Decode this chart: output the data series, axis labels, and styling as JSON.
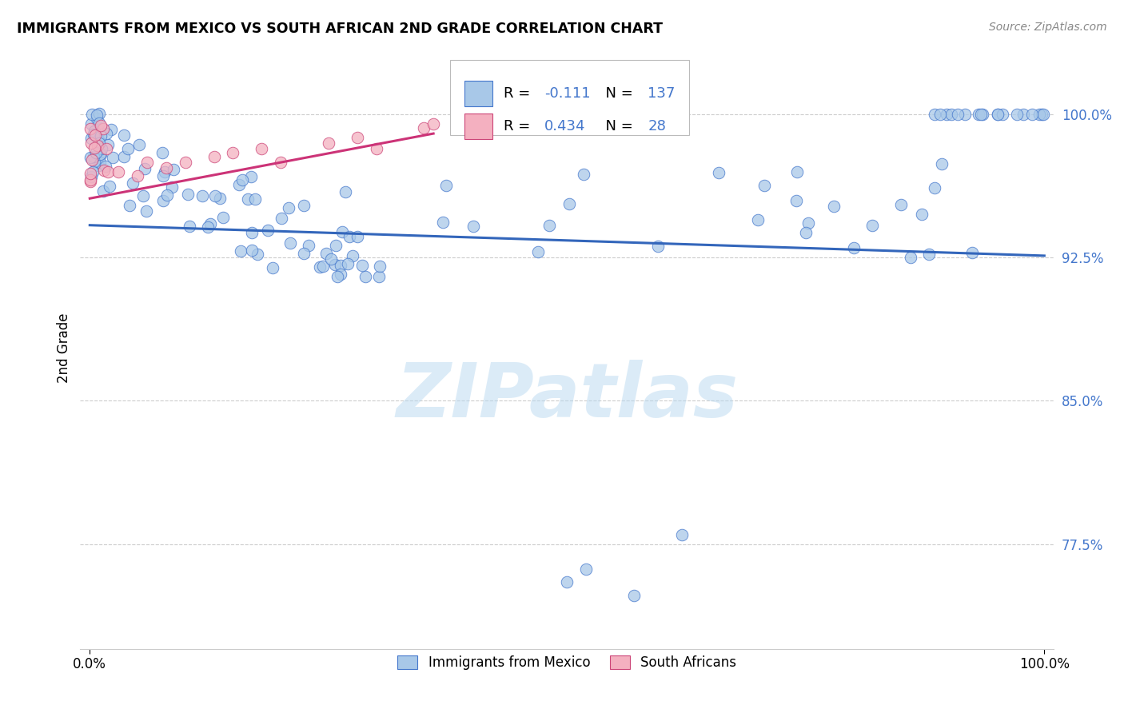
{
  "title": "IMMIGRANTS FROM MEXICO VS SOUTH AFRICAN 2ND GRADE CORRELATION CHART",
  "source": "Source: ZipAtlas.com",
  "ylabel": "2nd Grade",
  "legend_label1": "Immigrants from Mexico",
  "legend_label2": "South Africans",
  "legend_r1": "-0.111",
  "legend_n1": "137",
  "legend_r2": "0.434",
  "legend_n2": "28",
  "blue_fill": "#a8c8e8",
  "blue_edge": "#4477cc",
  "pink_fill": "#f4b0c0",
  "pink_edge": "#cc4477",
  "blue_line_color": "#3366bb",
  "pink_line_color": "#cc3377",
  "ytick_labels": [
    "77.5%",
    "85.0%",
    "92.5%",
    "100.0%"
  ],
  "ytick_values": [
    0.775,
    0.85,
    0.925,
    1.0
  ],
  "xlim": [
    -0.01,
    1.01
  ],
  "ylim": [
    0.72,
    1.035
  ],
  "watermark_text": "ZIPatlas",
  "blue_trend_start_y": 0.942,
  "blue_trend_end_y": 0.926,
  "pink_trend_start_y": 0.956,
  "pink_trend_end_y": 0.99,
  "pink_trend_end_x": 0.36
}
